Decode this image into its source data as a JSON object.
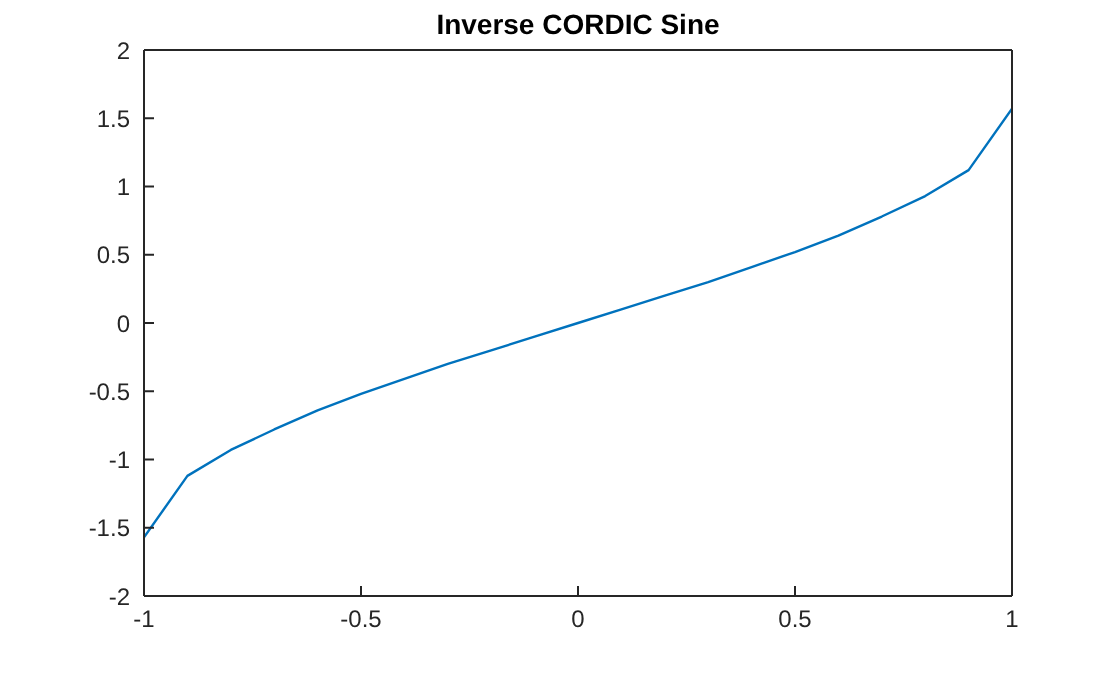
{
  "chart_data": {
    "type": "line",
    "title": "Inverse CORDIC Sine",
    "x": [
      -1,
      -0.9,
      -0.8,
      -0.7,
      -0.6,
      -0.5,
      -0.4,
      -0.3,
      -0.2,
      -0.1,
      0,
      0.1,
      0.2,
      0.3,
      0.4,
      0.5,
      0.6,
      0.7,
      0.8,
      0.9,
      1
    ],
    "series": [
      {
        "color": "#0072bd",
        "values": [
          -1.57,
          -1.12,
          -0.93,
          -0.78,
          -0.64,
          -0.52,
          -0.41,
          -0.3,
          -0.2,
          -0.1,
          0,
          0.1,
          0.2,
          0.3,
          0.41,
          0.52,
          0.64,
          0.78,
          0.93,
          1.12,
          1.57
        ]
      }
    ],
    "xlim": [
      -1,
      1
    ],
    "xticks": [
      -1,
      -0.5,
      0,
      0.5,
      1
    ],
    "ylim": [
      -2,
      2
    ],
    "yticks": [
      -2,
      -1.5,
      -1,
      -0.5,
      0,
      0.5,
      1,
      1.5,
      2
    ],
    "grid": false,
    "legend": false,
    "marker": "none",
    "line_style": "solid"
  }
}
